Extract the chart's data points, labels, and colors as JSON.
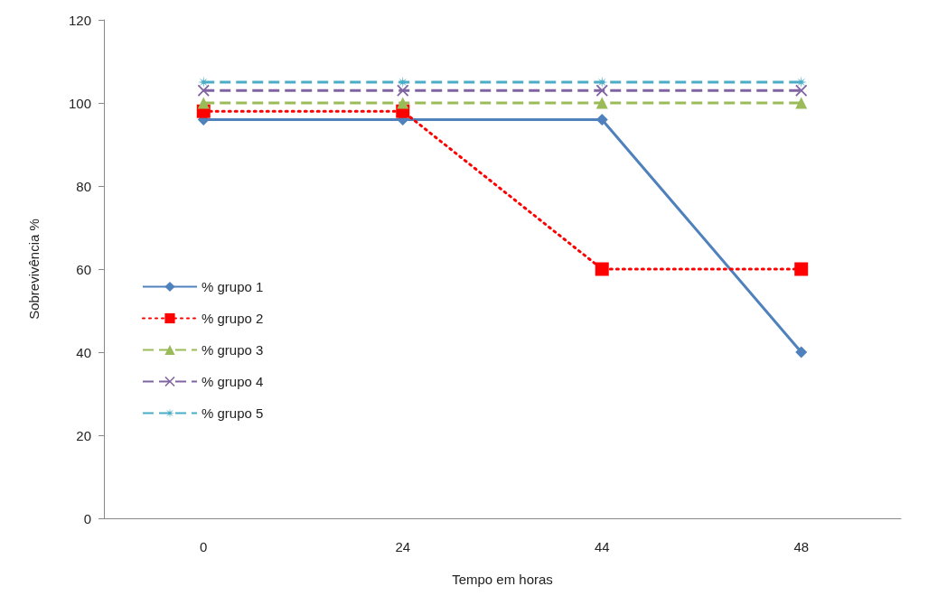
{
  "chart_data": {
    "type": "line",
    "xlabel": "Tempo em horas",
    "ylabel": "Sobrevivência %",
    "categories": [
      "0",
      "24",
      "44",
      "48"
    ],
    "ylim": [
      0,
      120
    ],
    "yticks": [
      0,
      20,
      40,
      60,
      80,
      100,
      120
    ],
    "grid": false,
    "legend": "bottom left",
    "series": [
      {
        "name": "% grupo 1",
        "color": "#4f81bd",
        "marker": "diamond",
        "line_style": "solid",
        "values": [
          96,
          96,
          96,
          40
        ]
      },
      {
        "name": "% grupo 2",
        "color": "#ff0000",
        "marker": "square",
        "line_style": "dotted",
        "values": [
          98,
          98,
          60,
          60
        ]
      },
      {
        "name": "% grupo 3",
        "color": "#9bbb59",
        "marker": "triangle",
        "line_style": "dashed",
        "values": [
          100,
          100,
          100,
          100
        ]
      },
      {
        "name": "% grupo 4",
        "color": "#8064a2",
        "marker": "cross",
        "line_style": "dashed",
        "values": [
          103,
          103,
          103,
          103
        ]
      },
      {
        "name": "% grupo 5",
        "color": "#4bacc6",
        "marker": "star",
        "line_style": "dashed",
        "values": [
          105,
          105,
          105,
          105
        ]
      }
    ]
  }
}
